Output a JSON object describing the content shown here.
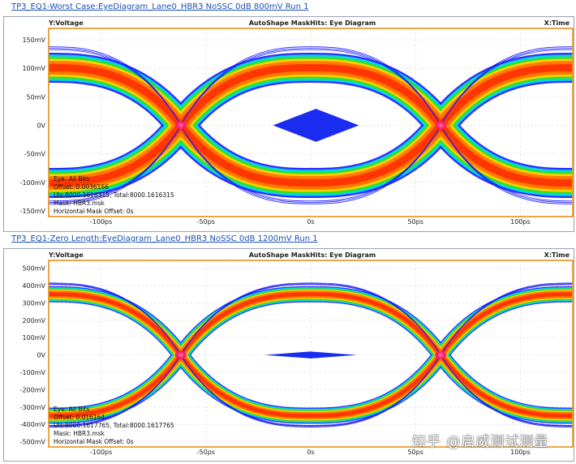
{
  "panels": [
    {
      "title": "TP3_EQ1-Worst Case:EyeDiagram_Lane0_HBR3 NoSSC 0dB 800mV Run 1",
      "y_axis_label": "Y:Voltage",
      "x_axis_label": "X:Time",
      "plot_title": "AutoShape MaskHits: Eye Diagram",
      "info_lines": [
        "Eye: All Bits",
        "Offset: 0.0036166",
        "UIs:8000.1616315, Total:8000.1616315",
        "Mask: HBR3.msk",
        "Horizontal Mask Offset: 0s"
      ]
    },
    {
      "title": "TP3_EQ1-Zero Length:EyeDiagram_Lane0_HBR3 NoSSC 0dB 1200mV Run 1",
      "y_axis_label": "Y:Voltage",
      "x_axis_label": "X:Time",
      "plot_title": "AutoShape MaskHits: Eye Diagram",
      "info_lines": [
        "Eye: All Bits",
        "Offset: 0.016164",
        "UIs:8000.1617765, Total:8000.1617765",
        "Mask: HBR3.msk",
        "Horizontal Mask Offset: 0s"
      ]
    }
  ],
  "watermark": "知乎 @启威测试测量",
  "chart_data": [
    {
      "type": "heatmap",
      "title": "AutoShape MaskHits: Eye Diagram",
      "xlabel": "X:Time",
      "ylabel": "Y:Voltage",
      "x_ticks": [
        "-100ps",
        "-50ps",
        "0s",
        "50ps",
        "100ps"
      ],
      "x_tick_values": [
        -100,
        -50,
        0,
        50,
        100
      ],
      "y_ticks": [
        "150mV",
        "100mV",
        "50mV",
        "0V",
        "-50mV",
        "-100mV",
        "-150mV"
      ],
      "y_tick_values": [
        150,
        100,
        50,
        0,
        -50,
        -100,
        -150
      ],
      "xlim": [
        -125,
        125
      ],
      "ylim": [
        -160,
        170
      ],
      "levels_mV": [
        118,
        84,
        -84,
        -118
      ],
      "crossings_ps": [
        -62,
        62
      ],
      "mask_diamond": {
        "x_ps": [
          -18,
          23
        ],
        "y_mV": [
          -29,
          29
        ]
      }
    },
    {
      "type": "heatmap",
      "title": "AutoShape MaskHits: Eye Diagram",
      "xlabel": "X:Time",
      "ylabel": "Y:Voltage",
      "x_ticks": [
        "-100ps",
        "-50ps",
        "0s",
        "50ps",
        "100ps"
      ],
      "x_tick_values": [
        -100,
        -50,
        0,
        50,
        100
      ],
      "y_ticks": [
        "500mV",
        "400mV",
        "300mV",
        "200mV",
        "100mV",
        "0V",
        "-100mV",
        "-200mV",
        "-300mV",
        "-400mV",
        "-500mV"
      ],
      "y_tick_values": [
        500,
        400,
        300,
        200,
        100,
        0,
        -100,
        -200,
        -300,
        -400,
        -500
      ],
      "xlim": [
        -125,
        125
      ],
      "ylim": [
        -530,
        545
      ],
      "levels_mV": [
        380,
        320,
        -320,
        -380
      ],
      "crossings_ps": [
        -62,
        62
      ],
      "mask_diamond": {
        "x_ps": [
          -22,
          22
        ],
        "y_mV": [
          -20,
          20
        ]
      }
    }
  ],
  "colors": {
    "plot_border": "#e8901a",
    "band_outer": "#1a1aff",
    "band_cyan": "#00d8e8",
    "band_green": "#30e030",
    "band_yellow": "#ffd000",
    "band_orange": "#ff7a00",
    "band_red": "#ff2a00",
    "band_core": "#ff1e6e",
    "mask": "#1a2cf0",
    "title_link": "#1a4fb5"
  }
}
